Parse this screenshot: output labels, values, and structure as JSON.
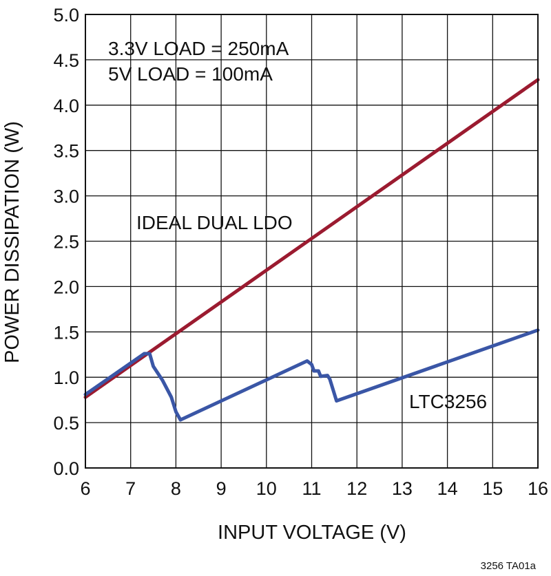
{
  "chart_data": {
    "type": "line",
    "title": "",
    "xlabel": "INPUT VOLTAGE (V)",
    "ylabel": "POWER DISSIPATION (W)",
    "xlim": [
      6,
      16
    ],
    "ylim": [
      0,
      5
    ],
    "x_ticks": [
      "6",
      "7",
      "8",
      "9",
      "10",
      "11",
      "12",
      "13",
      "14",
      "15",
      "16"
    ],
    "y_ticks": [
      "0.0",
      "0.5",
      "1.0",
      "1.5",
      "2.0",
      "2.5",
      "3.0",
      "3.5",
      "4.0",
      "4.5",
      "5.0"
    ],
    "grid": true,
    "series": [
      {
        "name": "IDEAL DUAL LDO",
        "color": "#9b1b30",
        "points": [
          [
            6,
            0.78
          ],
          [
            16,
            4.28
          ]
        ]
      },
      {
        "name": "LTC3256",
        "color": "#3a56a6",
        "points": [
          [
            6,
            0.81
          ],
          [
            7.3,
            1.26
          ],
          [
            7.42,
            1.26
          ],
          [
            7.5,
            1.12
          ],
          [
            7.7,
            0.97
          ],
          [
            7.9,
            0.78
          ],
          [
            8.0,
            0.62
          ],
          [
            8.1,
            0.53
          ],
          [
            10.9,
            1.18
          ],
          [
            11.0,
            1.14
          ],
          [
            11.05,
            1.07
          ],
          [
            11.15,
            1.07
          ],
          [
            11.2,
            1.01
          ],
          [
            11.35,
            1.02
          ],
          [
            11.4,
            0.98
          ],
          [
            11.55,
            0.74
          ],
          [
            16,
            1.52
          ]
        ]
      }
    ],
    "annotations": {
      "load_line1": "3.3V LOAD = 250mA",
      "load_line2": "5V LOAD = 100mA",
      "ideal_label": "IDEAL DUAL LDO",
      "ltc_label": "LTC3256"
    },
    "footnote": "3256 TA01a"
  }
}
